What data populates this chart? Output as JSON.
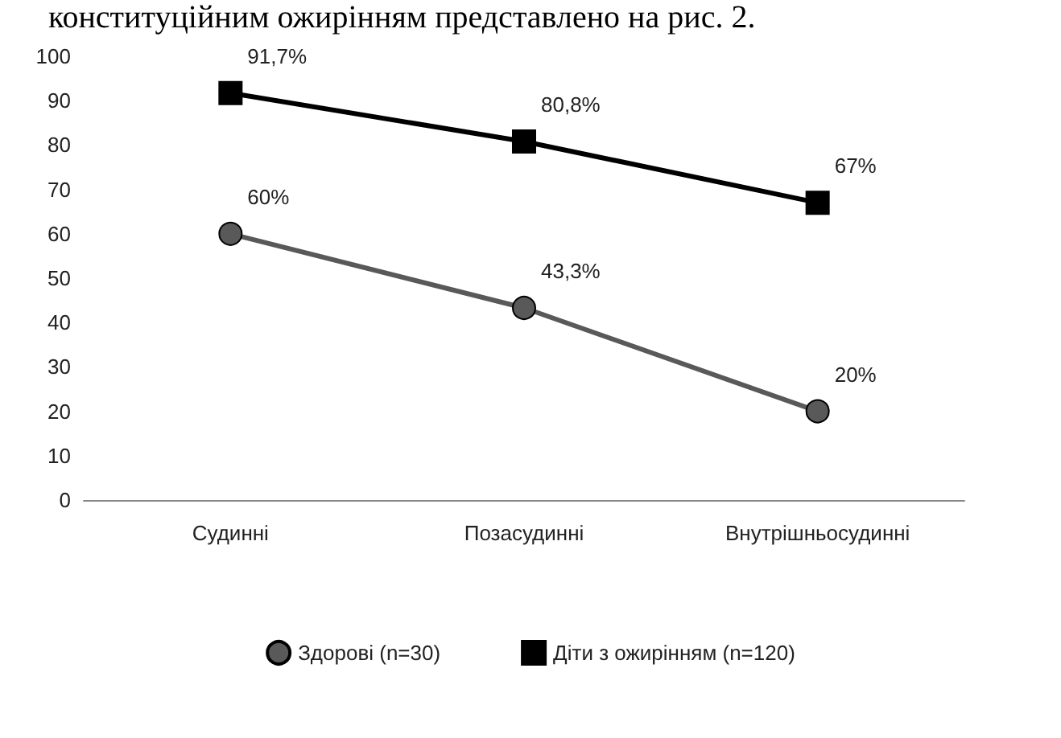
{
  "chart_data": {
    "type": "line",
    "annotations": [
      "конституційним ожирінням представлено на рис. 2."
    ],
    "categories": [
      "Судинні",
      "Позасудинні",
      "Внутрішньосудинні"
    ],
    "series": [
      {
        "name": "Здорові (n=30)",
        "color": "#595959",
        "marker": "circle",
        "values": [
          60,
          43.3,
          20
        ],
        "value_labels": [
          "60%",
          "43,3%",
          "20%"
        ]
      },
      {
        "name": "Діти з ожирінням (n=120)",
        "color": "#000000",
        "marker": "square",
        "values": [
          91.7,
          80.8,
          67
        ],
        "value_labels": [
          "91,7%",
          "80,8%",
          "67%"
        ]
      }
    ],
    "ylim": [
      0,
      100
    ],
    "yticks": [
      0,
      10,
      20,
      30,
      40,
      50,
      60,
      70,
      80,
      90,
      100
    ],
    "grid": false,
    "legend": "bottom"
  }
}
